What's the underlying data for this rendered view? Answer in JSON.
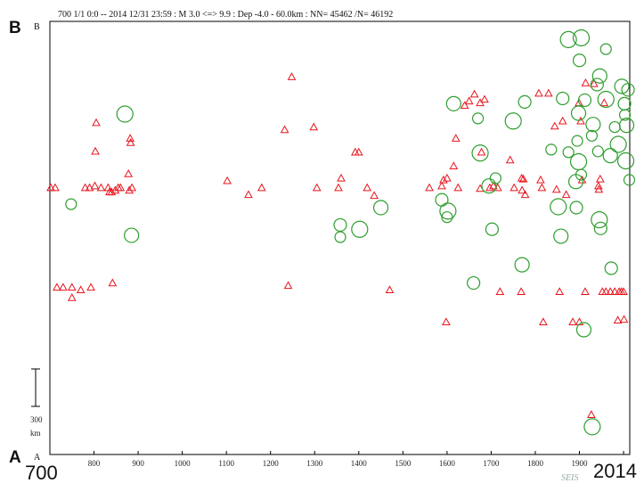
{
  "header": "700 1/1 0:0 -- 2014 12/31 23:59  : M 3.0 <=> 9.9  : Dep -4.0 - 60.0km :  NN= 45462 /N= 46192",
  "corner_labels": {
    "B_big": "B",
    "B_small": "B",
    "A_big": "A",
    "A_small": "A"
  },
  "scale_bar": {
    "value_label": "300",
    "unit_label": "km",
    "length_km": 300
  },
  "start_year_label": "700",
  "end_year_label": "2014",
  "watermark": "SEIS",
  "colors": {
    "triangle": "#e8141c",
    "circle": "#2e9e2e",
    "axis": "#000000"
  },
  "chart_data": {
    "type": "scatter",
    "title": "",
    "xlabel": "",
    "ylabel": "",
    "xlim": [
      700,
      2014
    ],
    "ylim": [
      0,
      1000
    ],
    "x_ticks": [
      700,
      800,
      900,
      1000,
      1100,
      1200,
      1300,
      1400,
      1500,
      1600,
      1700,
      1800,
      1900,
      2000
    ],
    "x_tick_labels": [
      "700",
      "800",
      "900",
      "1000",
      "1100",
      "1200",
      "1300",
      "1400",
      "1500",
      "1600",
      "1700",
      "1800",
      "1900",
      "2000"
    ],
    "series": [
      {
        "marker": "triangle",
        "points": [
          [
            702,
            616
          ],
          [
            712,
            616
          ],
          [
            730,
            386
          ],
          [
            716,
            386
          ],
          [
            750,
            386
          ],
          [
            750,
            362
          ],
          [
            770,
            380
          ],
          [
            793,
            386
          ],
          [
            780,
            616
          ],
          [
            790,
            616
          ],
          [
            802,
            620
          ],
          [
            803,
            700
          ],
          [
            805,
            766
          ],
          [
            816,
            616
          ],
          [
            832,
            616
          ],
          [
            840,
            606
          ],
          [
            835,
            606
          ],
          [
            842,
            396
          ],
          [
            848,
            610
          ],
          [
            855,
            616
          ],
          [
            860,
            616
          ],
          [
            878,
            648
          ],
          [
            880,
            610
          ],
          [
            882,
            730
          ],
          [
            886,
            616
          ],
          [
            883,
            720
          ],
          [
            1102,
            632
          ],
          [
            1150,
            600
          ],
          [
            1180,
            616
          ],
          [
            1232,
            750
          ],
          [
            1240,
            390
          ],
          [
            1248,
            872
          ],
          [
            1298,
            756
          ],
          [
            1305,
            616
          ],
          [
            1354,
            616
          ],
          [
            1360,
            638
          ],
          [
            1392,
            698
          ],
          [
            1400,
            698
          ],
          [
            1419,
            616
          ],
          [
            1435,
            598
          ],
          [
            1470,
            380
          ],
          [
            1560,
            616
          ],
          [
            1588,
            620
          ],
          [
            1592,
            634
          ],
          [
            1600,
            638
          ],
          [
            1598,
            306
          ],
          [
            1620,
            730
          ],
          [
            1615,
            666
          ],
          [
            1625,
            616
          ],
          [
            1640,
            806
          ],
          [
            1650,
            816
          ],
          [
            1662,
            832
          ],
          [
            1675,
            812
          ],
          [
            1685,
            820
          ],
          [
            1675,
            614
          ],
          [
            1678,
            698
          ],
          [
            1697,
            616
          ],
          [
            1705,
            620
          ],
          [
            1720,
            376
          ],
          [
            1715,
            616
          ],
          [
            1743,
            680
          ],
          [
            1752,
            616
          ],
          [
            1769,
            638
          ],
          [
            1770,
            610
          ],
          [
            1777,
            600
          ],
          [
            1773,
            636
          ],
          [
            1768,
            376
          ],
          [
            1808,
            834
          ],
          [
            1812,
            634
          ],
          [
            1818,
            306
          ],
          [
            1815,
            616
          ],
          [
            1830,
            834
          ],
          [
            1844,
            758
          ],
          [
            1848,
            612
          ],
          [
            1855,
            376
          ],
          [
            1862,
            770
          ],
          [
            1870,
            600
          ],
          [
            1885,
            306
          ],
          [
            1900,
            306
          ],
          [
            1899,
            812
          ],
          [
            1903,
            770
          ],
          [
            1906,
            634
          ],
          [
            1913,
            376
          ],
          [
            1914,
            858
          ],
          [
            1927,
            92
          ],
          [
            1933,
            856
          ],
          [
            1943,
            620
          ],
          [
            1944,
            612
          ],
          [
            1947,
            636
          ],
          [
            1952,
            376
          ],
          [
            1956,
            812
          ],
          [
            1960,
            376
          ],
          [
            1970,
            376
          ],
          [
            1980,
            376
          ],
          [
            1987,
            310
          ],
          [
            1990,
            376
          ],
          [
            1995,
            376
          ],
          [
            2000,
            376
          ],
          [
            2001,
            312
          ]
        ]
      },
      {
        "marker": "circle",
        "points": [
          [
            748,
            578
          ],
          [
            870,
            786
          ],
          [
            885,
            506
          ],
          [
            1358,
            530
          ],
          [
            1358,
            502
          ],
          [
            1402,
            520
          ],
          [
            1450,
            570
          ],
          [
            1588,
            588
          ],
          [
            1600,
            548
          ],
          [
            1602,
            562
          ],
          [
            1615,
            810
          ],
          [
            1660,
            396
          ],
          [
            1670,
            776
          ],
          [
            1675,
            696
          ],
          [
            1695,
            620
          ],
          [
            1702,
            520
          ],
          [
            1710,
            638
          ],
          [
            1750,
            770
          ],
          [
            1770,
            438
          ],
          [
            1776,
            814
          ],
          [
            1836,
            704
          ],
          [
            1852,
            572
          ],
          [
            1858,
            504
          ],
          [
            1862,
            822
          ],
          [
            1875,
            698
          ],
          [
            1875,
            958
          ],
          [
            1892,
            630
          ],
          [
            1893,
            570
          ],
          [
            1895,
            724
          ],
          [
            1898,
            676
          ],
          [
            1898,
            788
          ],
          [
            1900,
            910
          ],
          [
            1904,
            646
          ],
          [
            1904,
            962
          ],
          [
            1910,
            288
          ],
          [
            1912,
            818
          ],
          [
            1928,
            736
          ],
          [
            1929,
            64
          ],
          [
            1931,
            762
          ],
          [
            1940,
            854
          ],
          [
            1942,
            700
          ],
          [
            1945,
            542
          ],
          [
            1946,
            874
          ],
          [
            1948,
            522
          ],
          [
            1960,
            936
          ],
          [
            1960,
            820
          ],
          [
            1970,
            690
          ],
          [
            1972,
            430
          ],
          [
            1980,
            756
          ],
          [
            1988,
            716
          ],
          [
            1996,
            850
          ],
          [
            2002,
            810
          ],
          [
            2003,
            784
          ],
          [
            2005,
            678
          ],
          [
            2007,
            760
          ],
          [
            2010,
            842
          ],
          [
            2013,
            634
          ]
        ]
      }
    ]
  }
}
